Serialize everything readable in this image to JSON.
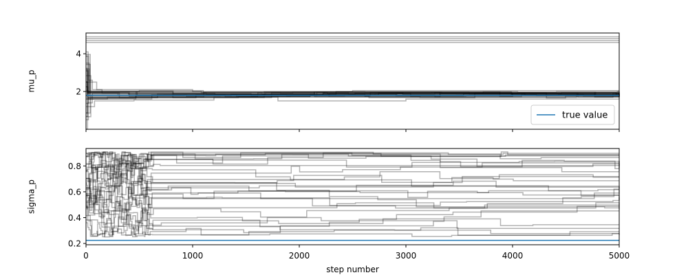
{
  "chart_data": [
    {
      "type": "line",
      "panel": "top",
      "ylabel": "mu_p",
      "xlabel": "",
      "xlim": [
        0,
        5000
      ],
      "ylim": [
        0,
        5.1
      ],
      "yticks": [
        2,
        4
      ],
      "yticklabels": [
        "2",
        "4"
      ],
      "xticks": [
        0,
        1000,
        2000,
        3000,
        4000,
        5000
      ],
      "show_x_ticklabels": false,
      "true_value": 1.8,
      "true_value_color": "#1f77b4",
      "walker_color": "#000000",
      "walker_opacity": 0.3,
      "n_walkers": 32,
      "series": [
        {
          "values": [
            [
              0,
              4.7
            ],
            [
              5000,
              4.7
            ]
          ]
        },
        {
          "values": [
            [
              0,
              4.8
            ],
            [
              5000,
              4.8
            ]
          ]
        },
        {
          "values": [
            [
              0,
              4.6
            ],
            [
              5000,
              4.6
            ]
          ]
        },
        {
          "values": [
            [
              0,
              4.9
            ],
            [
              5000,
              4.9
            ]
          ]
        },
        {
          "values": [
            [
              0,
              4.1
            ],
            [
              20,
              2.6
            ],
            [
              60,
              2.1
            ],
            [
              150,
              1.9
            ],
            [
              400,
              1.85
            ],
            [
              5000,
              1.85
            ]
          ]
        },
        {
          "values": [
            [
              0,
              0.0
            ],
            [
              15,
              1.4
            ],
            [
              60,
              1.9
            ],
            [
              300,
              1.8
            ],
            [
              5000,
              1.8
            ]
          ]
        },
        {
          "values": [
            [
              0,
              3.2
            ],
            [
              30,
              2.0
            ],
            [
              500,
              2.05
            ],
            [
              1100,
              1.95
            ],
            [
              5000,
              1.95
            ]
          ]
        },
        {
          "values": [
            [
              0,
              1.2
            ],
            [
              80,
              1.5
            ],
            [
              450,
              1.55
            ],
            [
              1200,
              1.7
            ],
            [
              5000,
              1.75
            ]
          ]
        },
        {
          "values": [
            [
              0,
              2.5
            ],
            [
              100,
              2.1
            ],
            [
              1000,
              2.0
            ],
            [
              2500,
              2.05
            ],
            [
              5000,
              2.05
            ]
          ]
        },
        {
          "values": [
            [
              0,
              1.6
            ],
            [
              200,
              1.7
            ],
            [
              1800,
              1.5
            ],
            [
              3000,
              1.6
            ],
            [
              5000,
              1.65
            ]
          ]
        }
      ]
    },
    {
      "type": "line",
      "panel": "bottom",
      "ylabel": "sigma_p",
      "xlabel": "step number",
      "xlim": [
        0,
        5000
      ],
      "ylim": [
        0.19,
        0.935
      ],
      "yticks": [
        0.2,
        0.4,
        0.6,
        0.8
      ],
      "yticklabels": [
        "0.2",
        "0.4",
        "0.6",
        "0.8"
      ],
      "xticks": [
        0,
        1000,
        2000,
        3000,
        4000,
        5000
      ],
      "xticklabels": [
        "0",
        "1000",
        "2000",
        "3000",
        "4000",
        "5000"
      ],
      "true_value": 0.224,
      "true_value_color": "#1f77b4",
      "walker_color": "#000000",
      "walker_opacity": 0.3,
      "n_walkers": 32,
      "walker_seed": 7
    }
  ],
  "legend": {
    "label": "true value",
    "color": "#1f77b4",
    "placement": "lower-right"
  }
}
